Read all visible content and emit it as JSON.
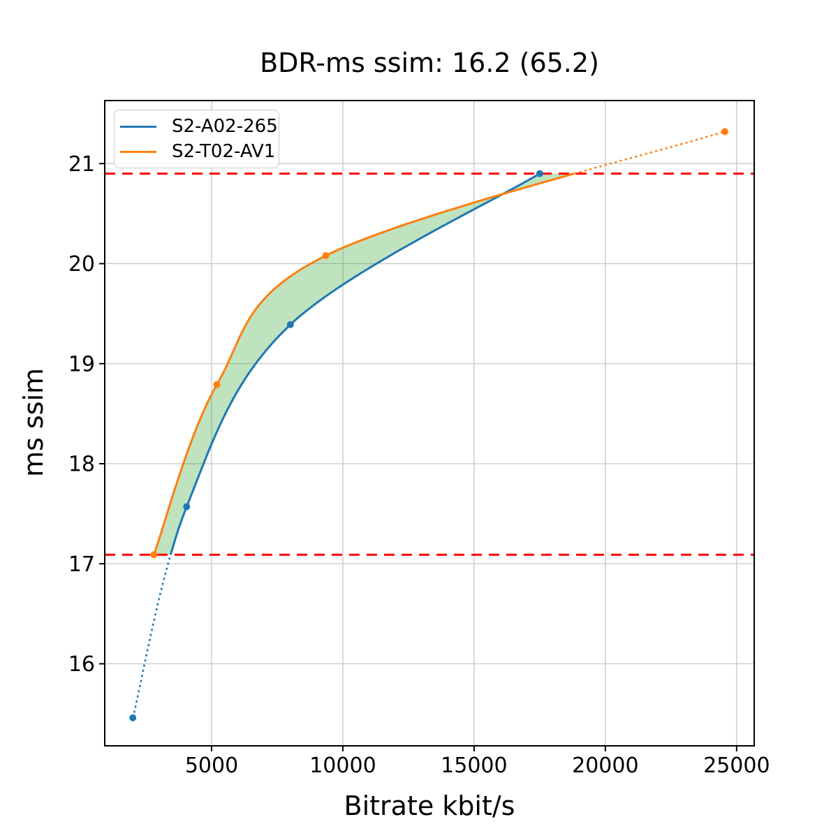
{
  "title": "BDR-ms ssim: 16.2 (65.2)",
  "axes": {
    "xlabel": "Bitrate kbit/s",
    "ylabel": "ms ssim"
  },
  "chart_data": {
    "type": "line",
    "title": "BDR-ms ssim: 16.2 (65.2)",
    "xlabel": "Bitrate kbit/s",
    "ylabel": "ms ssim",
    "xlim": [
      930,
      25670
    ],
    "ylim": [
      15.18,
      21.63
    ],
    "xticks": [
      5000,
      10000,
      15000,
      20000,
      25000
    ],
    "yticks": [
      16,
      17,
      18,
      19,
      20,
      21
    ],
    "grid": true,
    "legend_position": "upper-left",
    "series": [
      {
        "name": "S2-A02-265",
        "color": "#1f77b4",
        "points": [
          [
            2000,
            15.46
          ],
          [
            4050,
            17.57
          ],
          [
            8000,
            19.39
          ],
          [
            17500,
            20.9
          ]
        ],
        "dotted_extrapolation": "below-overlap"
      },
      {
        "name": "S2-T02-AV1",
        "color": "#ff7f0e",
        "points": [
          [
            2800,
            17.09
          ],
          [
            5200,
            18.79
          ],
          [
            9350,
            20.08
          ],
          [
            24550,
            21.32
          ]
        ],
        "dotted_extrapolation": "above-overlap"
      }
    ],
    "overlap_lines": {
      "color": "#ff0000",
      "style": "dashed",
      "y_values": [
        17.09,
        20.9
      ]
    },
    "fill_between": {
      "color": "#2ca02c",
      "opacity": 0.3
    }
  }
}
